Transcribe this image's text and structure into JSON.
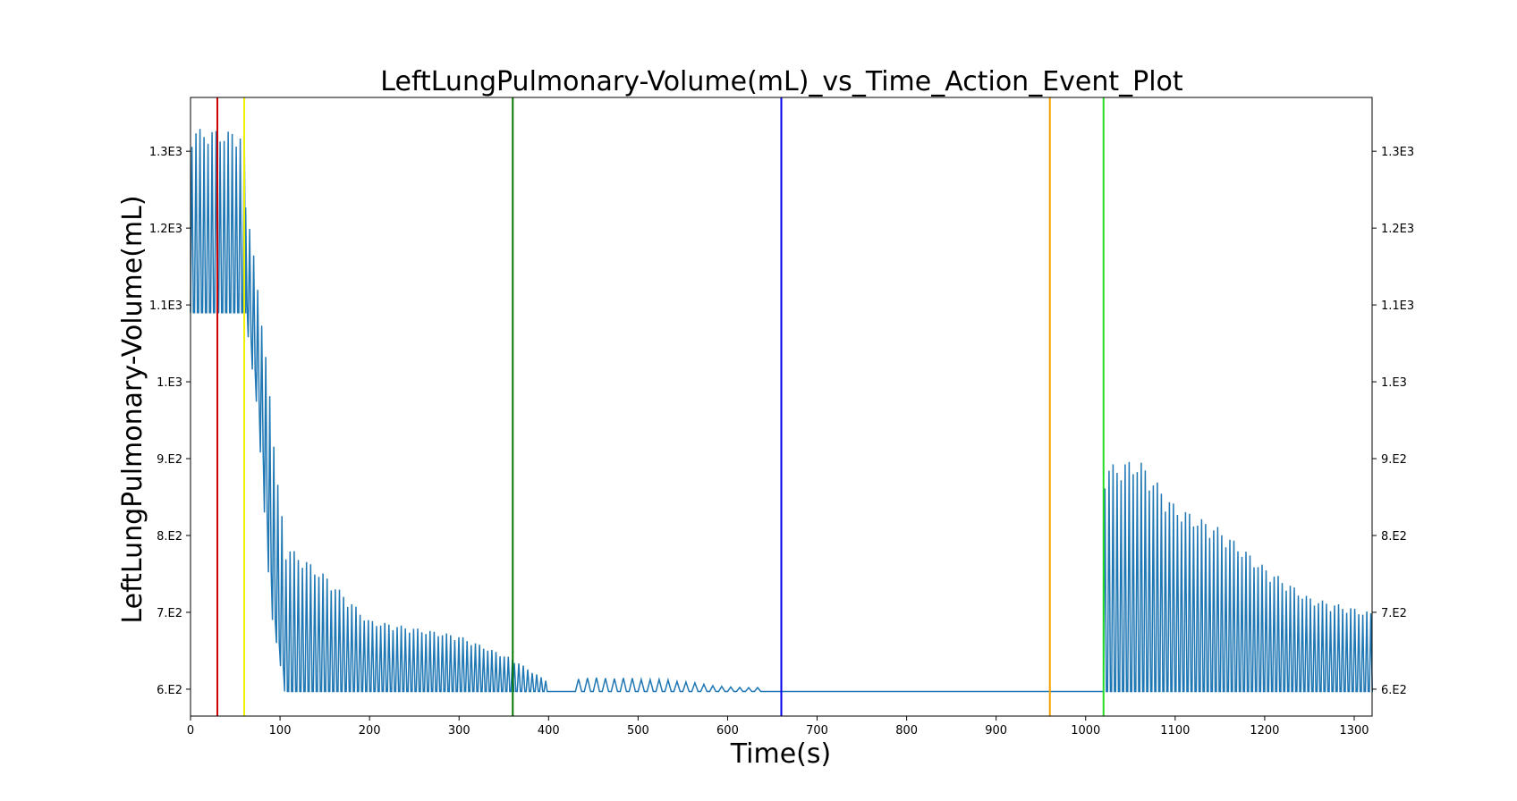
{
  "chart_data": {
    "type": "line",
    "title": "LeftLungPulmonary-Volume(mL)_vs_Time_Action_Event_Plot",
    "xlabel": "Time(s)",
    "ylabel": "LeftLungPulmonary-Volume(mL)",
    "xlim": [
      0,
      1320
    ],
    "ylim": [
      565,
      1370
    ],
    "grid": false,
    "x_ticks": [
      0,
      100,
      200,
      300,
      400,
      500,
      600,
      700,
      800,
      900,
      1000,
      1100,
      1200,
      1300
    ],
    "x_tick_labels": [
      "0",
      "100",
      "200",
      "300",
      "400",
      "500",
      "600",
      "700",
      "800",
      "900",
      "1000",
      "1100",
      "1200",
      "1300"
    ],
    "y_ticks": [
      600,
      700,
      800,
      900,
      1000,
      1100,
      1200,
      1300
    ],
    "y_tick_labels": [
      "6.E2",
      "7.E2",
      "8.E2",
      "9.E2",
      "1.E3",
      "1.1E3",
      "1.2E3",
      "1.3E3"
    ],
    "series_color": "#1f77b4",
    "baseline": 597,
    "segments": [
      {
        "start": 0,
        "end": 60,
        "period": 4.5,
        "min": 1090,
        "max": [
          [
            0,
            1330
          ],
          [
            60,
            1325
          ]
        ]
      },
      {
        "start": 60,
        "end": 105,
        "period": 4.5,
        "min": [
          [
            60,
            1100
          ],
          [
            75,
            960
          ],
          [
            90,
            700
          ],
          [
            105,
            600
          ]
        ],
        "max": [
          [
            60,
            1260
          ],
          [
            80,
            1090
          ],
          [
            105,
            800
          ]
        ]
      },
      {
        "start": 105,
        "end": 360,
        "period": 4.6,
        "min": 597,
        "max": [
          [
            105,
            790
          ],
          [
            150,
            750
          ],
          [
            200,
            690
          ],
          [
            250,
            680
          ],
          [
            300,
            670
          ],
          [
            360,
            640
          ]
        ]
      },
      {
        "start": 360,
        "end": 400,
        "period": 5,
        "min": 597,
        "max": [
          [
            360,
            640
          ],
          [
            400,
            610
          ]
        ]
      },
      {
        "start": 430,
        "end": 640,
        "period": 10,
        "min": 597,
        "max": [
          [
            430,
            615
          ],
          [
            480,
            615
          ],
          [
            540,
            612
          ],
          [
            600,
            603
          ],
          [
            640,
            602
          ]
        ]
      },
      {
        "start": 640,
        "end": 1020,
        "period": 0,
        "min": 597,
        "max": 597
      },
      {
        "start": 1020,
        "end": 1320,
        "period": 4.5,
        "min": 597,
        "max": [
          [
            1020,
            890
          ],
          [
            1060,
            900
          ],
          [
            1100,
            840
          ],
          [
            1150,
            810
          ],
          [
            1200,
            760
          ],
          [
            1250,
            720
          ],
          [
            1320,
            700
          ]
        ]
      }
    ],
    "event_lines": [
      {
        "x": 30,
        "color": "#cc0000"
      },
      {
        "x": 60,
        "color": "#f0f000"
      },
      {
        "x": 360,
        "color": "#007700"
      },
      {
        "x": 660,
        "color": "#0000ee"
      },
      {
        "x": 960,
        "color": "#f5a000"
      },
      {
        "x": 1020,
        "color": "#22dd22"
      }
    ]
  }
}
